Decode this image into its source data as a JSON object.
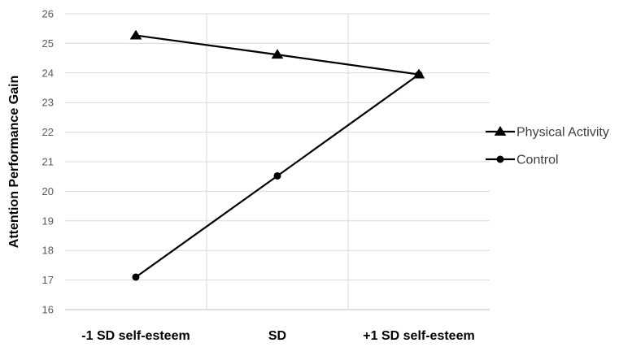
{
  "chart_data": {
    "type": "line",
    "categories": [
      "-1 SD self-esteem",
      "SD",
      "+1 SD self-esteem"
    ],
    "series": [
      {
        "name": "Physical Activity",
        "marker": "triangle",
        "values": [
          25.27,
          24.62,
          23.95
        ]
      },
      {
        "name": "Control",
        "marker": "circle",
        "values": [
          17.1,
          20.52,
          23.95
        ]
      }
    ],
    "ylabel": "Attention Performance Gain",
    "xlabel": "",
    "ylim": [
      16,
      26
    ],
    "yticks": [
      16,
      17,
      18,
      19,
      20,
      21,
      22,
      23,
      24,
      25,
      26
    ],
    "grid": true,
    "legend_position": "right",
    "colors": {
      "line": "#000000",
      "grid": "#d9d9d9",
      "axis": "#bfbfbf"
    }
  }
}
